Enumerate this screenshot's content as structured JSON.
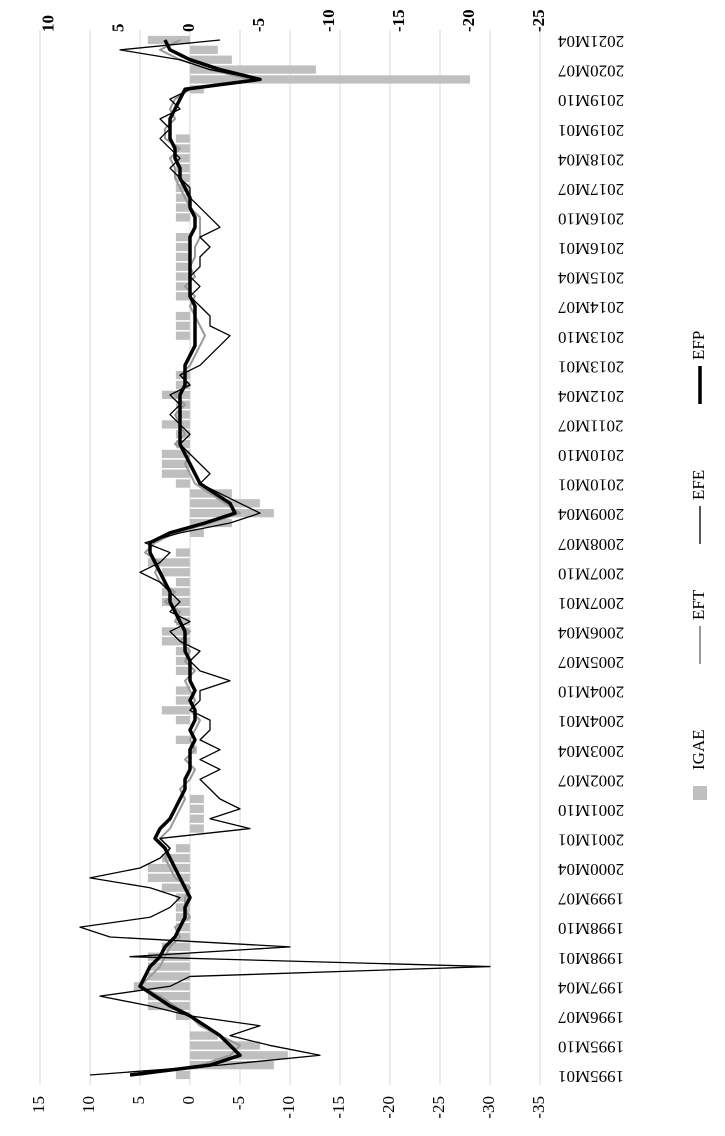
{
  "chart_data": {
    "type": "combo",
    "categories": [
      "1995M01",
      null,
      null,
      "1995M10",
      null,
      null,
      "1996M07",
      null,
      null,
      "1997M04",
      null,
      null,
      "1998M01",
      null,
      null,
      "1998M10",
      null,
      null,
      "1999M07",
      null,
      null,
      "2000M04",
      null,
      null,
      "2001M01",
      null,
      null,
      "2001M10",
      null,
      null,
      "2002M07",
      null,
      null,
      "2003M04",
      null,
      null,
      "2004M01",
      null,
      null,
      "2004M10",
      null,
      null,
      "2005M07",
      null,
      null,
      "2006M04",
      null,
      null,
      "2007M01",
      null,
      null,
      "2007M10",
      null,
      null,
      "2008M07",
      null,
      null,
      "2009M04",
      null,
      null,
      "2010M01",
      null,
      null,
      "2010M10",
      null,
      null,
      "2011M07",
      null,
      null,
      "2012M04",
      null,
      null,
      "2013M01",
      null,
      null,
      "2013M10",
      null,
      null,
      "2014M07",
      null,
      null,
      "2015M04",
      null,
      null,
      "2016M01",
      null,
      null,
      "2016M10",
      null,
      null,
      "2017M07",
      null,
      null,
      "2018M04",
      null,
      null,
      "2019M01",
      null,
      null,
      "2019M10",
      null,
      null,
      "2020M07",
      null,
      null,
      "2021M04"
    ],
    "series": [
      {
        "name": "IGAE",
        "type": "bar",
        "axis": "y2",
        "color": "#bfbfbf",
        "values": [
          1,
          -6,
          -7,
          -5,
          -2,
          0,
          1,
          3,
          3,
          4,
          3,
          3,
          3,
          2,
          1,
          1,
          1,
          1,
          1,
          2,
          3,
          3,
          2,
          1,
          0,
          -1,
          -1,
          -1,
          -1,
          0,
          0,
          0,
          0,
          -0.5,
          1,
          0,
          1,
          2,
          1,
          1,
          0,
          1,
          1,
          1,
          2,
          2,
          1,
          1,
          2,
          2,
          1,
          2,
          3,
          1,
          0,
          -1,
          -3,
          -6,
          -5,
          -3,
          1,
          2,
          2,
          2,
          1,
          1,
          2,
          1,
          1,
          2,
          1,
          1,
          0,
          0,
          0,
          1,
          1,
          1,
          0,
          1,
          1,
          1,
          1,
          1,
          1,
          1,
          0,
          1,
          1,
          1,
          1,
          1,
          1,
          1,
          1,
          1,
          0,
          0,
          0,
          0,
          -1,
          -20,
          -9,
          -3,
          -2,
          3
        ]
      },
      {
        "name": "EFT",
        "type": "line",
        "color": "#999999",
        "width": 2,
        "values": [
          5,
          -1,
          -4,
          -5,
          -3,
          -1,
          0,
          1.5,
          3,
          5,
          4,
          3,
          2.5,
          2,
          1,
          1.5,
          0,
          0.5,
          0.5,
          0,
          1.5,
          2,
          2.5,
          2,
          3,
          2,
          1.5,
          1,
          0.5,
          1,
          0,
          -0.5,
          0.5,
          -0.5,
          0,
          -0.5,
          -1,
          0,
          -0.5,
          0,
          0.5,
          -0.5,
          0.5,
          0,
          1,
          0,
          1.5,
          1,
          2.5,
          1.5,
          3,
          3.5,
          3,
          4.5,
          3.5,
          1.5,
          -2,
          -5,
          -3.5,
          -2,
          -0.5,
          0,
          0.5,
          0,
          1.5,
          0.5,
          1,
          1.5,
          0.5,
          1.5,
          0,
          1,
          0,
          -0.5,
          -1,
          -1.5,
          -1,
          -0.5,
          0,
          -0.5,
          0.5,
          -0.5,
          0,
          -0.5,
          -0.5,
          -1,
          -1,
          -1,
          0,
          0.5,
          1,
          1.5,
          1.5,
          2,
          1,
          2.5,
          2.5,
          1.5,
          2,
          1.5,
          0,
          -6,
          -2,
          1,
          3,
          1
        ]
      },
      {
        "name": "EFE",
        "type": "line",
        "color": "#000000",
        "width": 1.3,
        "values": [
          10,
          -3,
          -13,
          -8,
          -4,
          -7,
          0,
          4,
          9,
          2,
          0,
          -30,
          6,
          -10,
          8,
          11,
          4,
          2,
          1,
          4,
          10,
          5,
          3,
          2,
          3,
          -6,
          -2,
          -5,
          -3,
          -2,
          -1,
          -3,
          -1,
          -3,
          -1,
          -2,
          -2,
          0,
          -1,
          -1,
          -4,
          -1,
          0,
          -1,
          1,
          2,
          0,
          2,
          1,
          2,
          3,
          5,
          3,
          2,
          4.5,
          1,
          -4,
          -7,
          -5,
          -3,
          -1,
          -2,
          -1,
          0,
          1,
          0,
          1,
          2,
          1,
          2,
          0,
          1,
          -1,
          -2,
          -3,
          -4,
          -2,
          -2,
          -1,
          0,
          -1,
          0,
          -1,
          -1,
          -2,
          -1,
          -3,
          -2,
          -1,
          0,
          0,
          1,
          2,
          1,
          2,
          3,
          2,
          3,
          1,
          2,
          0,
          -7,
          -2,
          1,
          7,
          -3
        ]
      },
      {
        "name": "EFP",
        "type": "line",
        "color": "#000000",
        "width": 3.5,
        "values": [
          6,
          -2,
          -5,
          -4,
          -3,
          -1.5,
          0,
          2,
          3.5,
          5,
          4.5,
          4,
          3,
          2.5,
          1.5,
          1,
          0.5,
          0.5,
          0,
          0.5,
          1,
          1.5,
          2,
          2.5,
          3.5,
          3,
          2,
          1.5,
          1,
          0.5,
          0.5,
          0,
          0,
          0,
          -0.5,
          0,
          -0.5,
          -0.5,
          0,
          -0.5,
          0,
          0,
          0,
          0.5,
          0.5,
          0.5,
          1,
          1.5,
          2,
          2,
          2.5,
          3,
          3.5,
          4,
          4,
          2,
          -1.5,
          -4.5,
          -4,
          -2.5,
          -1,
          -0.5,
          0,
          0.5,
          1,
          1,
          1,
          1,
          1,
          1,
          0.5,
          0.5,
          0.5,
          0,
          -0.5,
          -0.5,
          -0.5,
          -0.5,
          -0.5,
          0,
          0,
          0,
          0,
          0,
          0,
          0,
          -0.5,
          -0.5,
          0,
          0,
          0.5,
          1,
          1,
          1.5,
          1.5,
          2,
          2,
          2,
          1.5,
          1,
          0.5,
          -7,
          -3,
          0,
          2,
          2.5
        ]
      }
    ],
    "ylim": [
      -35,
      15
    ],
    "yticks": [
      15,
      10,
      5,
      0,
      -5,
      -10,
      -15,
      -20,
      -25,
      -30,
      -35
    ],
    "y2lim": [
      -25,
      10.7
    ],
    "y2ticks": [
      10,
      5,
      0,
      -5,
      -10,
      -15,
      -20,
      -25
    ],
    "grid": true
  }
}
